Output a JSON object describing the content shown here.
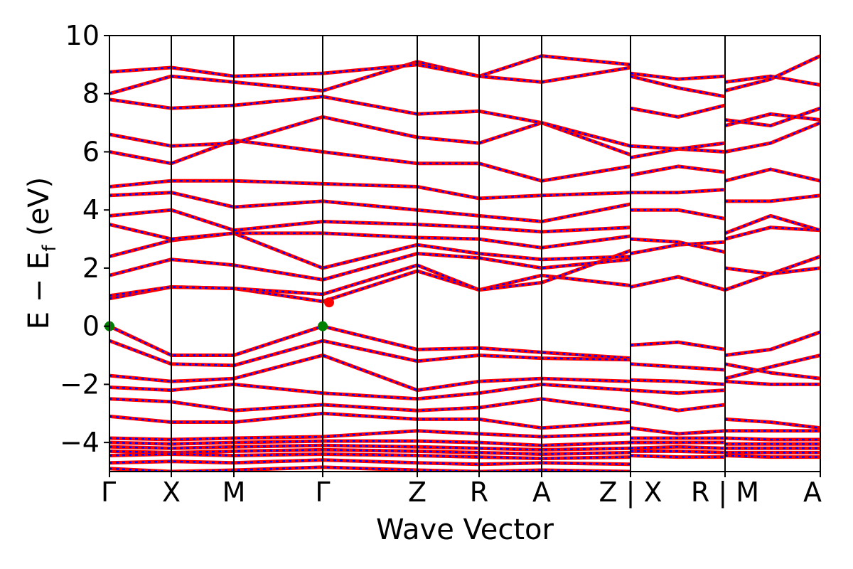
{
  "chart_data": {
    "type": "line",
    "title": "",
    "xlabel": "Wave Vector",
    "ylabel_main": "E − E",
    "ylabel_sub": "f",
    "ylabel_unit": " (eV)",
    "ylim": [
      -5,
      10
    ],
    "xlim": [
      0,
      1
    ],
    "y_ticks": [
      {
        "value": -4,
        "label": "−4"
      },
      {
        "value": -2,
        "label": "−2"
      },
      {
        "value": 0,
        "label": "0"
      },
      {
        "value": 2,
        "label": "2"
      },
      {
        "value": 4,
        "label": "4"
      },
      {
        "value": 6,
        "label": "6"
      },
      {
        "value": 8,
        "label": "8"
      },
      {
        "value": 10,
        "label": "10"
      }
    ],
    "kpoints": [
      {
        "pos": 0.0,
        "label": "Γ"
      },
      {
        "pos": 0.087,
        "label": "X"
      },
      {
        "pos": 0.175,
        "label": "M"
      },
      {
        "pos": 0.3,
        "label": "Γ"
      },
      {
        "pos": 0.433,
        "label": "Z"
      },
      {
        "pos": 0.52,
        "label": "R"
      },
      {
        "pos": 0.608,
        "label": "A"
      },
      {
        "pos": 0.733,
        "label": "Z|X"
      },
      {
        "pos": 0.866,
        "label": "R|M"
      },
      {
        "pos": 1.0,
        "label": "A"
      }
    ],
    "segment_breaks": [
      0.733,
      0.866
    ],
    "band_colors": {
      "line": "#ff0000",
      "dash": "#0000ff"
    },
    "markers": [
      {
        "label": "VBM",
        "x": 0.0,
        "y": 0.0,
        "color": "#008000"
      },
      {
        "label": "VBM",
        "x": 0.3,
        "y": 0.0,
        "color": "#008000"
      },
      {
        "label": "CBM",
        "x": 0.309,
        "y": 0.82,
        "color": "#ff0000"
      }
    ],
    "bands": [
      [
        [
          0,
          0.95
        ],
        [
          0.087,
          1.35
        ],
        [
          0.175,
          1.3
        ],
        [
          0.3,
          0.85
        ],
        [
          0.433,
          1.9
        ],
        [
          0.52,
          1.25
        ],
        [
          0.608,
          1.75
        ],
        [
          0.733,
          1.4
        ],
        [
          0.733,
          1.35
        ],
        [
          0.8,
          1.7
        ],
        [
          0.866,
          1.25
        ],
        [
          0.866,
          1.25
        ],
        [
          0.93,
          1.8
        ],
        [
          1,
          2.4
        ]
      ],
      [
        [
          0,
          1.05
        ],
        [
          0.087,
          1.35
        ],
        [
          0.175,
          1.3
        ],
        [
          0.3,
          1.1
        ],
        [
          0.433,
          2.1
        ],
        [
          0.52,
          1.25
        ],
        [
          0.608,
          1.5
        ],
        [
          0.733,
          2.6
        ],
        [
          0.733,
          2.5
        ],
        [
          0.8,
          2.8
        ],
        [
          0.866,
          2.9
        ],
        [
          0.866,
          2.0
        ],
        [
          0.93,
          1.8
        ],
        [
          1,
          2.0
        ]
      ],
      [
        [
          0,
          1.75
        ],
        [
          0.087,
          2.3
        ],
        [
          0.175,
          2.1
        ],
        [
          0.3,
          1.6
        ],
        [
          0.433,
          2.5
        ],
        [
          0.52,
          2.35
        ],
        [
          0.608,
          2.0
        ],
        [
          0.733,
          2.3
        ],
        [
          0.733,
          3.0
        ],
        [
          0.8,
          2.9
        ],
        [
          0.866,
          2.55
        ],
        [
          0.866,
          3.0
        ],
        [
          0.93,
          3.4
        ],
        [
          1,
          3.3
        ]
      ],
      [
        [
          0,
          2.4
        ],
        [
          0.087,
          2.95
        ],
        [
          0.175,
          3.2
        ],
        [
          0.3,
          2.0
        ],
        [
          0.433,
          2.8
        ],
        [
          0.52,
          2.5
        ],
        [
          0.608,
          2.3
        ],
        [
          0.733,
          2.4
        ],
        [
          0.733,
          4.0
        ],
        [
          0.8,
          4.0
        ],
        [
          0.866,
          3.7
        ],
        [
          0.866,
          3.2
        ],
        [
          0.93,
          3.8
        ],
        [
          1,
          3.3
        ]
      ],
      [
        [
          0,
          3.5
        ],
        [
          0.087,
          3.0
        ],
        [
          0.175,
          3.2
        ],
        [
          0.3,
          3.2
        ],
        [
          0.433,
          3.05
        ],
        [
          0.52,
          3.0
        ],
        [
          0.608,
          2.7
        ],
        [
          0.733,
          3.1
        ],
        [
          0.733,
          4.6
        ],
        [
          0.8,
          4.6
        ],
        [
          0.866,
          4.7
        ],
        [
          0.866,
          4.3
        ],
        [
          0.93,
          4.3
        ],
        [
          1,
          4.5
        ]
      ],
      [
        [
          0,
          3.8
        ],
        [
          0.087,
          4.0
        ],
        [
          0.175,
          3.3
        ],
        [
          0.3,
          3.6
        ],
        [
          0.433,
          3.5
        ],
        [
          0.52,
          3.4
        ],
        [
          0.608,
          3.25
        ],
        [
          0.733,
          3.4
        ],
        [
          0.733,
          5.2
        ],
        [
          0.8,
          5.5
        ],
        [
          0.866,
          5.3
        ],
        [
          0.866,
          5.0
        ],
        [
          0.93,
          5.4
        ],
        [
          1,
          5.0
        ]
      ],
      [
        [
          0,
          4.5
        ],
        [
          0.087,
          4.6
        ],
        [
          0.175,
          4.1
        ],
        [
          0.3,
          4.3
        ],
        [
          0.433,
          4.0
        ],
        [
          0.52,
          3.8
        ],
        [
          0.608,
          3.6
        ],
        [
          0.733,
          4.2
        ],
        [
          0.733,
          5.8
        ],
        [
          0.8,
          6.1
        ],
        [
          0.866,
          6.0
        ],
        [
          0.866,
          6.0
        ],
        [
          0.93,
          6.3
        ],
        [
          1,
          7.0
        ]
      ],
      [
        [
          0,
          4.8
        ],
        [
          0.087,
          5.0
        ],
        [
          0.175,
          5.0
        ],
        [
          0.3,
          4.9
        ],
        [
          0.433,
          4.8
        ],
        [
          0.52,
          4.4
        ],
        [
          0.608,
          4.5
        ],
        [
          0.733,
          4.6
        ],
        [
          0.733,
          6.2
        ],
        [
          0.8,
          6.1
        ],
        [
          0.866,
          6.3
        ],
        [
          0.866,
          6.9
        ],
        [
          0.93,
          7.3
        ],
        [
          1,
          7.1
        ]
      ],
      [
        [
          0,
          6.0
        ],
        [
          0.087,
          5.6
        ],
        [
          0.175,
          6.4
        ],
        [
          0.3,
          6.0
        ],
        [
          0.433,
          5.6
        ],
        [
          0.52,
          5.6
        ],
        [
          0.608,
          5.0
        ],
        [
          0.733,
          5.5
        ],
        [
          0.733,
          7.5
        ],
        [
          0.8,
          7.2
        ],
        [
          0.866,
          7.6
        ],
        [
          0.866,
          7.1
        ],
        [
          0.93,
          6.9
        ],
        [
          1,
          7.5
        ]
      ],
      [
        [
          0,
          6.6
        ],
        [
          0.087,
          6.2
        ],
        [
          0.175,
          6.3
        ],
        [
          0.3,
          7.2
        ],
        [
          0.433,
          6.5
        ],
        [
          0.52,
          6.3
        ],
        [
          0.608,
          7.0
        ],
        [
          0.733,
          5.9
        ],
        [
          0.733,
          8.7
        ],
        [
          0.8,
          8.5
        ],
        [
          0.866,
          8.6
        ],
        [
          0.866,
          8.4
        ],
        [
          0.93,
          8.6
        ],
        [
          1,
          8.3
        ]
      ],
      [
        [
          0,
          7.8
        ],
        [
          0.087,
          7.5
        ],
        [
          0.175,
          7.6
        ],
        [
          0.3,
          7.9
        ],
        [
          0.433,
          7.3
        ],
        [
          0.52,
          7.4
        ],
        [
          0.608,
          7.0
        ],
        [
          0.733,
          6.2
        ],
        [
          0.733,
          8.6
        ],
        [
          0.8,
          8.2
        ],
        [
          0.866,
          7.9
        ],
        [
          0.866,
          8.1
        ],
        [
          0.93,
          8.5
        ],
        [
          1,
          9.3
        ]
      ],
      [
        [
          0,
          8.0
        ],
        [
          0.087,
          8.6
        ],
        [
          0.175,
          8.4
        ],
        [
          0.3,
          8.1
        ],
        [
          0.433,
          9.1
        ],
        [
          0.52,
          8.6
        ],
        [
          0.608,
          9.3
        ],
        [
          0.733,
          9.0
        ]
      ],
      [
        [
          0,
          8.75
        ],
        [
          0.087,
          8.9
        ],
        [
          0.175,
          8.6
        ],
        [
          0.3,
          8.7
        ],
        [
          0.433,
          9.0
        ],
        [
          0.52,
          8.6
        ],
        [
          0.608,
          8.4
        ],
        [
          0.733,
          8.9
        ]
      ],
      [
        [
          0,
          0.0
        ],
        [
          0.087,
          -1.0
        ],
        [
          0.175,
          -1.0
        ],
        [
          0.3,
          0.0
        ],
        [
          0.433,
          -0.8
        ],
        [
          0.52,
          -0.75
        ],
        [
          0.608,
          -0.9
        ],
        [
          0.733,
          -1.1
        ],
        [
          0.733,
          -0.65
        ],
        [
          0.8,
          -0.55
        ],
        [
          0.866,
          -0.8
        ],
        [
          0.866,
          -1.0
        ],
        [
          0.93,
          -0.8
        ],
        [
          1,
          -0.2
        ]
      ],
      [
        [
          0,
          -0.5
        ],
        [
          0.087,
          -1.3
        ],
        [
          0.175,
          -1.35
        ],
        [
          0.3,
          -0.5
        ],
        [
          0.433,
          -1.2
        ],
        [
          0.52,
          -1.0
        ],
        [
          0.608,
          -1.1
        ],
        [
          0.733,
          -1.15
        ],
        [
          0.733,
          -1.3
        ],
        [
          0.8,
          -1.4
        ],
        [
          0.866,
          -1.5
        ],
        [
          0.866,
          -1.8
        ],
        [
          0.93,
          -1.4
        ],
        [
          1,
          -1.0
        ]
      ],
      [
        [
          0,
          -1.7
        ],
        [
          0.087,
          -1.9
        ],
        [
          0.175,
          -1.8
        ],
        [
          0.3,
          -1.0
        ],
        [
          0.433,
          -2.2
        ],
        [
          0.52,
          -1.9
        ],
        [
          0.608,
          -1.8
        ],
        [
          0.733,
          -1.9
        ],
        [
          0.733,
          -1.85
        ],
        [
          0.8,
          -1.9
        ],
        [
          0.866,
          -2.0
        ],
        [
          0.866,
          -1.3
        ],
        [
          0.93,
          -1.6
        ],
        [
          1,
          -1.8
        ]
      ],
      [
        [
          0,
          -2.1
        ],
        [
          0.087,
          -2.2
        ],
        [
          0.175,
          -2.0
        ],
        [
          0.3,
          -2.3
        ],
        [
          0.433,
          -2.5
        ],
        [
          0.52,
          -2.3
        ],
        [
          0.608,
          -2.0
        ],
        [
          0.733,
          -2.2
        ],
        [
          0.733,
          -2.2
        ],
        [
          0.8,
          -2.3
        ],
        [
          0.866,
          -2.2
        ],
        [
          0.866,
          -1.9
        ],
        [
          0.93,
          -2.0
        ],
        [
          1,
          -2.0
        ]
      ],
      [
        [
          0,
          -2.5
        ],
        [
          0.087,
          -2.6
        ],
        [
          0.175,
          -2.9
        ],
        [
          0.3,
          -2.7
        ],
        [
          0.433,
          -2.9
        ],
        [
          0.52,
          -2.8
        ],
        [
          0.608,
          -2.5
        ],
        [
          0.733,
          -2.9
        ],
        [
          0.733,
          -2.6
        ],
        [
          0.8,
          -2.9
        ],
        [
          0.866,
          -2.7
        ],
        [
          0.866,
          -3.2
        ],
        [
          0.93,
          -3.3
        ],
        [
          1,
          -3.5
        ]
      ],
      [
        [
          0,
          -3.1
        ],
        [
          0.087,
          -3.3
        ],
        [
          0.175,
          -3.3
        ],
        [
          0.3,
          -3.0
        ],
        [
          0.433,
          -3.2
        ],
        [
          0.52,
          -3.2
        ],
        [
          0.608,
          -3.5
        ],
        [
          0.733,
          -3.3
        ],
        [
          0.733,
          -3.5
        ],
        [
          0.8,
          -3.7
        ],
        [
          0.866,
          -3.6
        ],
        [
          0.866,
          -3.6
        ],
        [
          0.93,
          -3.6
        ],
        [
          1,
          -3.6
        ]
      ],
      [
        [
          0,
          -3.85
        ],
        [
          0.087,
          -3.9
        ],
        [
          0.175,
          -3.85
        ],
        [
          0.3,
          -3.8
        ],
        [
          0.433,
          -3.6
        ],
        [
          0.52,
          -3.7
        ],
        [
          0.608,
          -3.8
        ],
        [
          0.733,
          -3.7
        ],
        [
          0.733,
          -3.85
        ],
        [
          0.8,
          -3.85
        ],
        [
          0.866,
          -3.85
        ],
        [
          0.866,
          -3.85
        ],
        [
          0.93,
          -3.9
        ],
        [
          1,
          -3.9
        ]
      ],
      [
        [
          0,
          -4.0
        ],
        [
          0.087,
          -4.05
        ],
        [
          0.175,
          -4.0
        ],
        [
          0.3,
          -3.95
        ],
        [
          0.433,
          -3.95
        ],
        [
          0.52,
          -4.0
        ],
        [
          0.608,
          -4.1
        ],
        [
          0.733,
          -4.0
        ],
        [
          0.733,
          -4.0
        ],
        [
          0.8,
          -4.0
        ],
        [
          0.866,
          -4.0
        ],
        [
          0.866,
          -4.05
        ],
        [
          0.93,
          -4.05
        ],
        [
          1,
          -4.05
        ]
      ],
      [
        [
          0,
          -4.15
        ],
        [
          0.087,
          -4.2
        ],
        [
          0.175,
          -4.15
        ],
        [
          0.3,
          -4.1
        ],
        [
          0.433,
          -4.15
        ],
        [
          0.52,
          -4.2
        ],
        [
          0.608,
          -4.25
        ],
        [
          0.733,
          -4.2
        ],
        [
          0.733,
          -4.2
        ],
        [
          0.8,
          -4.15
        ],
        [
          0.866,
          -4.2
        ],
        [
          0.866,
          -4.2
        ],
        [
          0.93,
          -4.2
        ],
        [
          1,
          -4.2
        ]
      ],
      [
        [
          0,
          -4.3
        ],
        [
          0.087,
          -4.35
        ],
        [
          0.175,
          -4.3
        ],
        [
          0.3,
          -4.25
        ],
        [
          0.433,
          -4.3
        ],
        [
          0.52,
          -4.35
        ],
        [
          0.608,
          -4.4
        ],
        [
          0.733,
          -4.35
        ],
        [
          0.733,
          -4.3
        ],
        [
          0.8,
          -4.3
        ],
        [
          0.866,
          -4.35
        ],
        [
          0.866,
          -4.35
        ],
        [
          0.93,
          -4.35
        ],
        [
          1,
          -4.35
        ]
      ],
      [
        [
          0,
          -4.45
        ],
        [
          0.087,
          -4.4
        ],
        [
          0.175,
          -4.45
        ],
        [
          0.3,
          -4.4
        ],
        [
          0.433,
          -4.45
        ],
        [
          0.52,
          -4.5
        ],
        [
          0.608,
          -4.55
        ],
        [
          0.733,
          -4.5
        ],
        [
          0.733,
          -4.45
        ],
        [
          0.8,
          -4.5
        ],
        [
          0.866,
          -4.5
        ],
        [
          0.866,
          -4.45
        ],
        [
          0.93,
          -4.5
        ],
        [
          1,
          -4.5
        ]
      ],
      [
        [
          0,
          -4.7
        ],
        [
          0.087,
          -4.65
        ],
        [
          0.175,
          -4.7
        ],
        [
          0.3,
          -4.6
        ],
        [
          0.433,
          -4.7
        ],
        [
          0.52,
          -4.75
        ],
        [
          0.608,
          -4.7
        ],
        [
          0.733,
          -4.75
        ]
      ],
      [
        [
          0,
          -4.9
        ],
        [
          0.087,
          -5.0
        ],
        [
          0.175,
          -4.95
        ],
        [
          0.3,
          -4.85
        ],
        [
          0.433,
          -4.95
        ],
        [
          0.52,
          -5.0
        ],
        [
          0.608,
          -4.95
        ],
        [
          0.733,
          -5.0
        ]
      ]
    ]
  }
}
